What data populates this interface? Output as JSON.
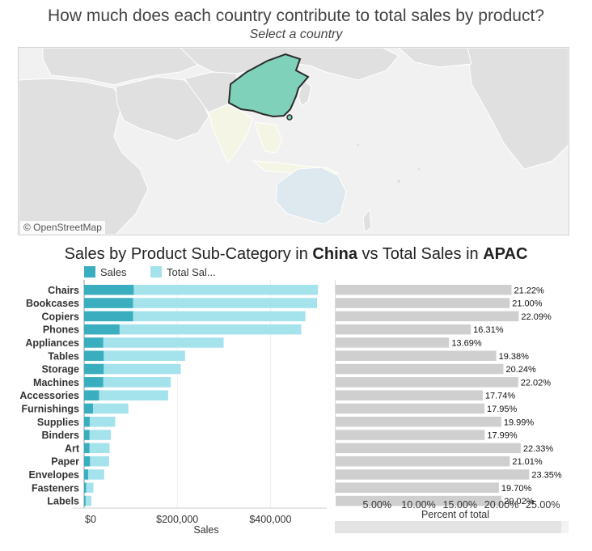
{
  "header": {
    "title": "How much does each country contribute to total sales by product?",
    "subtitle": "Select a country"
  },
  "map": {
    "credit": "© OpenStreetMap",
    "selected_country": "China",
    "selected_color": "#7fd1b9",
    "land_color": "#e0e0e0",
    "water_color": "#f1f1f1",
    "region_color": "#f5f5e6",
    "ocean_highlight_color": "#dde8ef"
  },
  "section": {
    "title_prefix": "Sales by Product Sub-Category in ",
    "country": "China",
    "title_middle": " vs Total Sales in ",
    "region": "APAC"
  },
  "legend": {
    "sales_label": "Sales",
    "total_label": "Total Sal...",
    "sales_color": "#3aaebf",
    "total_color": "#a4e2ec"
  },
  "chart_data": [
    {
      "type": "bar",
      "orientation": "horizontal",
      "categories": [
        "Chairs",
        "Bookcases",
        "Copiers",
        "Phones",
        "Appliances",
        "Tables",
        "Storage",
        "Machines",
        "Accessories",
        "Furnishings",
        "Supplies",
        "Binders",
        "Art",
        "Paper",
        "Envelopes",
        "Fasteners",
        "Labels"
      ],
      "series": [
        {
          "name": "Sales",
          "values": [
            106500,
            105000,
            105000,
            76000,
            41000,
            42000,
            42000,
            41000,
            32000,
            19000,
            12000,
            11500,
            11500,
            12500,
            8500,
            4200,
            3100
          ]
        },
        {
          "name": "Total Sal...",
          "values": [
            502000,
            500000,
            475000,
            466000,
            299500,
            216700,
            207500,
            186200,
            180400,
            95000,
            66700,
            57500,
            54700,
            53500,
            43100,
            20000,
            15500
          ]
        }
      ],
      "xlabel": "Sales",
      "x_ticks": [
        "$0",
        "$200,000",
        "$400,000"
      ],
      "x_tick_values": [
        0,
        200000,
        400000
      ],
      "xlim": [
        0,
        520000
      ],
      "colors": {
        "Sales": "#3aaebf",
        "Total Sal...": "#a4e2ec"
      }
    },
    {
      "type": "bar",
      "orientation": "horizontal",
      "categories": [
        "Chairs",
        "Bookcases",
        "Copiers",
        "Phones",
        "Appliances",
        "Tables",
        "Storage",
        "Machines",
        "Accessories",
        "Furnishings",
        "Supplies",
        "Binders",
        "Art",
        "Paper",
        "Envelopes",
        "Fasteners",
        "Labels"
      ],
      "values": [
        21.22,
        21.0,
        22.09,
        16.31,
        13.69,
        19.38,
        20.24,
        22.02,
        17.74,
        17.95,
        19.99,
        17.99,
        22.33,
        21.01,
        23.35,
        19.7,
        20.02
      ],
      "data_labels": [
        "21.22%",
        "21.00%",
        "22.09%",
        "16.31%",
        "13.69%",
        "19.38%",
        "20.24%",
        "22.02%",
        "17.74%",
        "17.95%",
        "19.99%",
        "17.99%",
        "22.33%",
        "21.01%",
        "23.35%",
        "19.70%",
        "20.02%"
      ],
      "xlabel": "Percent of total",
      "x_ticks": [
        "5.00%",
        "10.00%",
        "15.00%",
        "20.00%",
        "25.00%"
      ],
      "x_tick_values": [
        5,
        10,
        15,
        20,
        25
      ],
      "xlim": [
        0,
        27
      ],
      "color": "#cfcfcf"
    }
  ]
}
